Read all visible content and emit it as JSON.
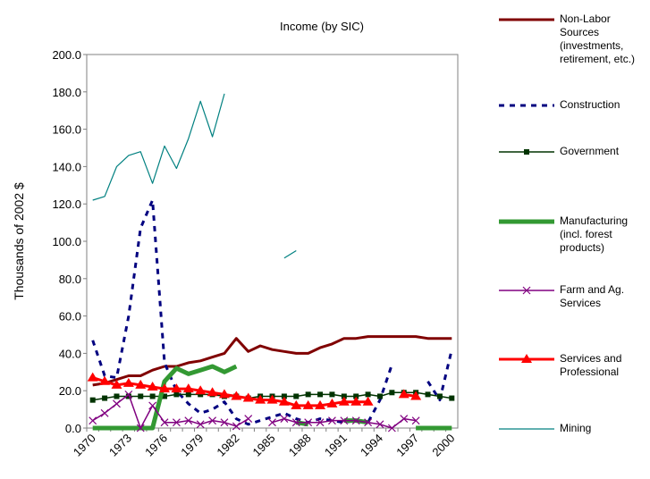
{
  "chart_data": {
    "type": "line",
    "title": "Income (by SIC)",
    "y_label": "Thousands of 2002 $",
    "categories": [
      "1970",
      null,
      null,
      "1973",
      null,
      null,
      "1976",
      null,
      null,
      "1979",
      null,
      null,
      "1982",
      null,
      null,
      "1985",
      null,
      null,
      "1988",
      null,
      null,
      "1991",
      null,
      null,
      "1994",
      null,
      null,
      "1997",
      null,
      null,
      "2000"
    ],
    "ylim": [
      0,
      200
    ],
    "yticks": [
      {
        "value": 0,
        "label": "0.0"
      },
      {
        "value": 20,
        "label": "20.0"
      },
      {
        "value": 40,
        "label": "40.0"
      },
      {
        "value": 60,
        "label": "60.0"
      },
      {
        "value": 80,
        "label": "80.0"
      },
      {
        "value": 100,
        "label": "100.0"
      },
      {
        "value": 120,
        "label": "120.0"
      },
      {
        "value": 140,
        "label": "140.0"
      },
      {
        "value": 160,
        "label": "160.0"
      },
      {
        "value": 180,
        "label": "180.0"
      },
      {
        "value": 200,
        "label": "200.0"
      }
    ],
    "legend": "right",
    "series": [
      {
        "name": "Non-Labor Sources (investments, retirement, etc.)",
        "color": "#800000",
        "width": 3,
        "dash": false,
        "marker": "none",
        "values": [
          23,
          24,
          26,
          28,
          28,
          31,
          33,
          33,
          35,
          36,
          38,
          40,
          48,
          41,
          44,
          42,
          41,
          40,
          40,
          43,
          45,
          48,
          48,
          49,
          49,
          49,
          49,
          49,
          48,
          48,
          48
        ]
      },
      {
        "name": "Construction",
        "color": "#000080",
        "width": 3,
        "dash": true,
        "marker": "none",
        "values": [
          47,
          28,
          27,
          60,
          107,
          122,
          35,
          20,
          13,
          8,
          10,
          14,
          5,
          2,
          4,
          6,
          8,
          5,
          3,
          5,
          4,
          3,
          4,
          3,
          15,
          34,
          null,
          null,
          25,
          15,
          42
        ]
      },
      {
        "name": "Government",
        "color": "#003300",
        "width": 1.5,
        "dash": false,
        "marker": "square",
        "values": [
          15,
          16,
          17,
          17,
          17,
          17,
          17,
          18,
          18,
          18,
          18,
          17,
          17,
          16,
          17,
          17,
          17,
          17,
          18,
          18,
          18,
          17,
          17,
          18,
          17,
          19,
          19,
          19,
          18,
          17,
          16
        ]
      },
      {
        "name": "Manufacturing (incl. forest products)",
        "color": "#339933",
        "width": 5,
        "dash": false,
        "marker": "none",
        "values": [
          0,
          0,
          0,
          0,
          0,
          0,
          25,
          32,
          29,
          31,
          33,
          30,
          33,
          null,
          null,
          null,
          null,
          3,
          2,
          null,
          null,
          4,
          4,
          3,
          null,
          null,
          null,
          0,
          0,
          0,
          0
        ]
      },
      {
        "name": "Farm and Ag. Services",
        "color": "#800080",
        "width": 1.5,
        "dash": false,
        "marker": "x",
        "values": [
          4,
          8,
          13,
          18,
          0,
          12,
          3,
          3,
          4,
          2,
          4,
          3,
          1,
          5,
          null,
          3,
          5,
          3,
          3,
          3,
          4,
          4,
          4,
          3,
          2,
          0,
          5,
          4,
          null,
          null,
          null
        ]
      },
      {
        "name": "Services and Professional",
        "color": "#ff0000",
        "width": 3,
        "dash": false,
        "marker": "triangle",
        "values": [
          27,
          25,
          23,
          24,
          23,
          22,
          21,
          21,
          21,
          20,
          19,
          18,
          17,
          16,
          15,
          15,
          14,
          12,
          12,
          12,
          13,
          14,
          14,
          14,
          null,
          null,
          18,
          17,
          null,
          null,
          null
        ]
      },
      {
        "name": "Mining",
        "color": "#008080",
        "width": 1.2,
        "dash": false,
        "marker": "none",
        "values": [
          122,
          124,
          140,
          146,
          148,
          131,
          151,
          139,
          155,
          175,
          156,
          179,
          null,
          null,
          null,
          null,
          91,
          95,
          null,
          null,
          null,
          null,
          null,
          null,
          null,
          null,
          null,
          null,
          null,
          null,
          null
        ]
      }
    ]
  }
}
